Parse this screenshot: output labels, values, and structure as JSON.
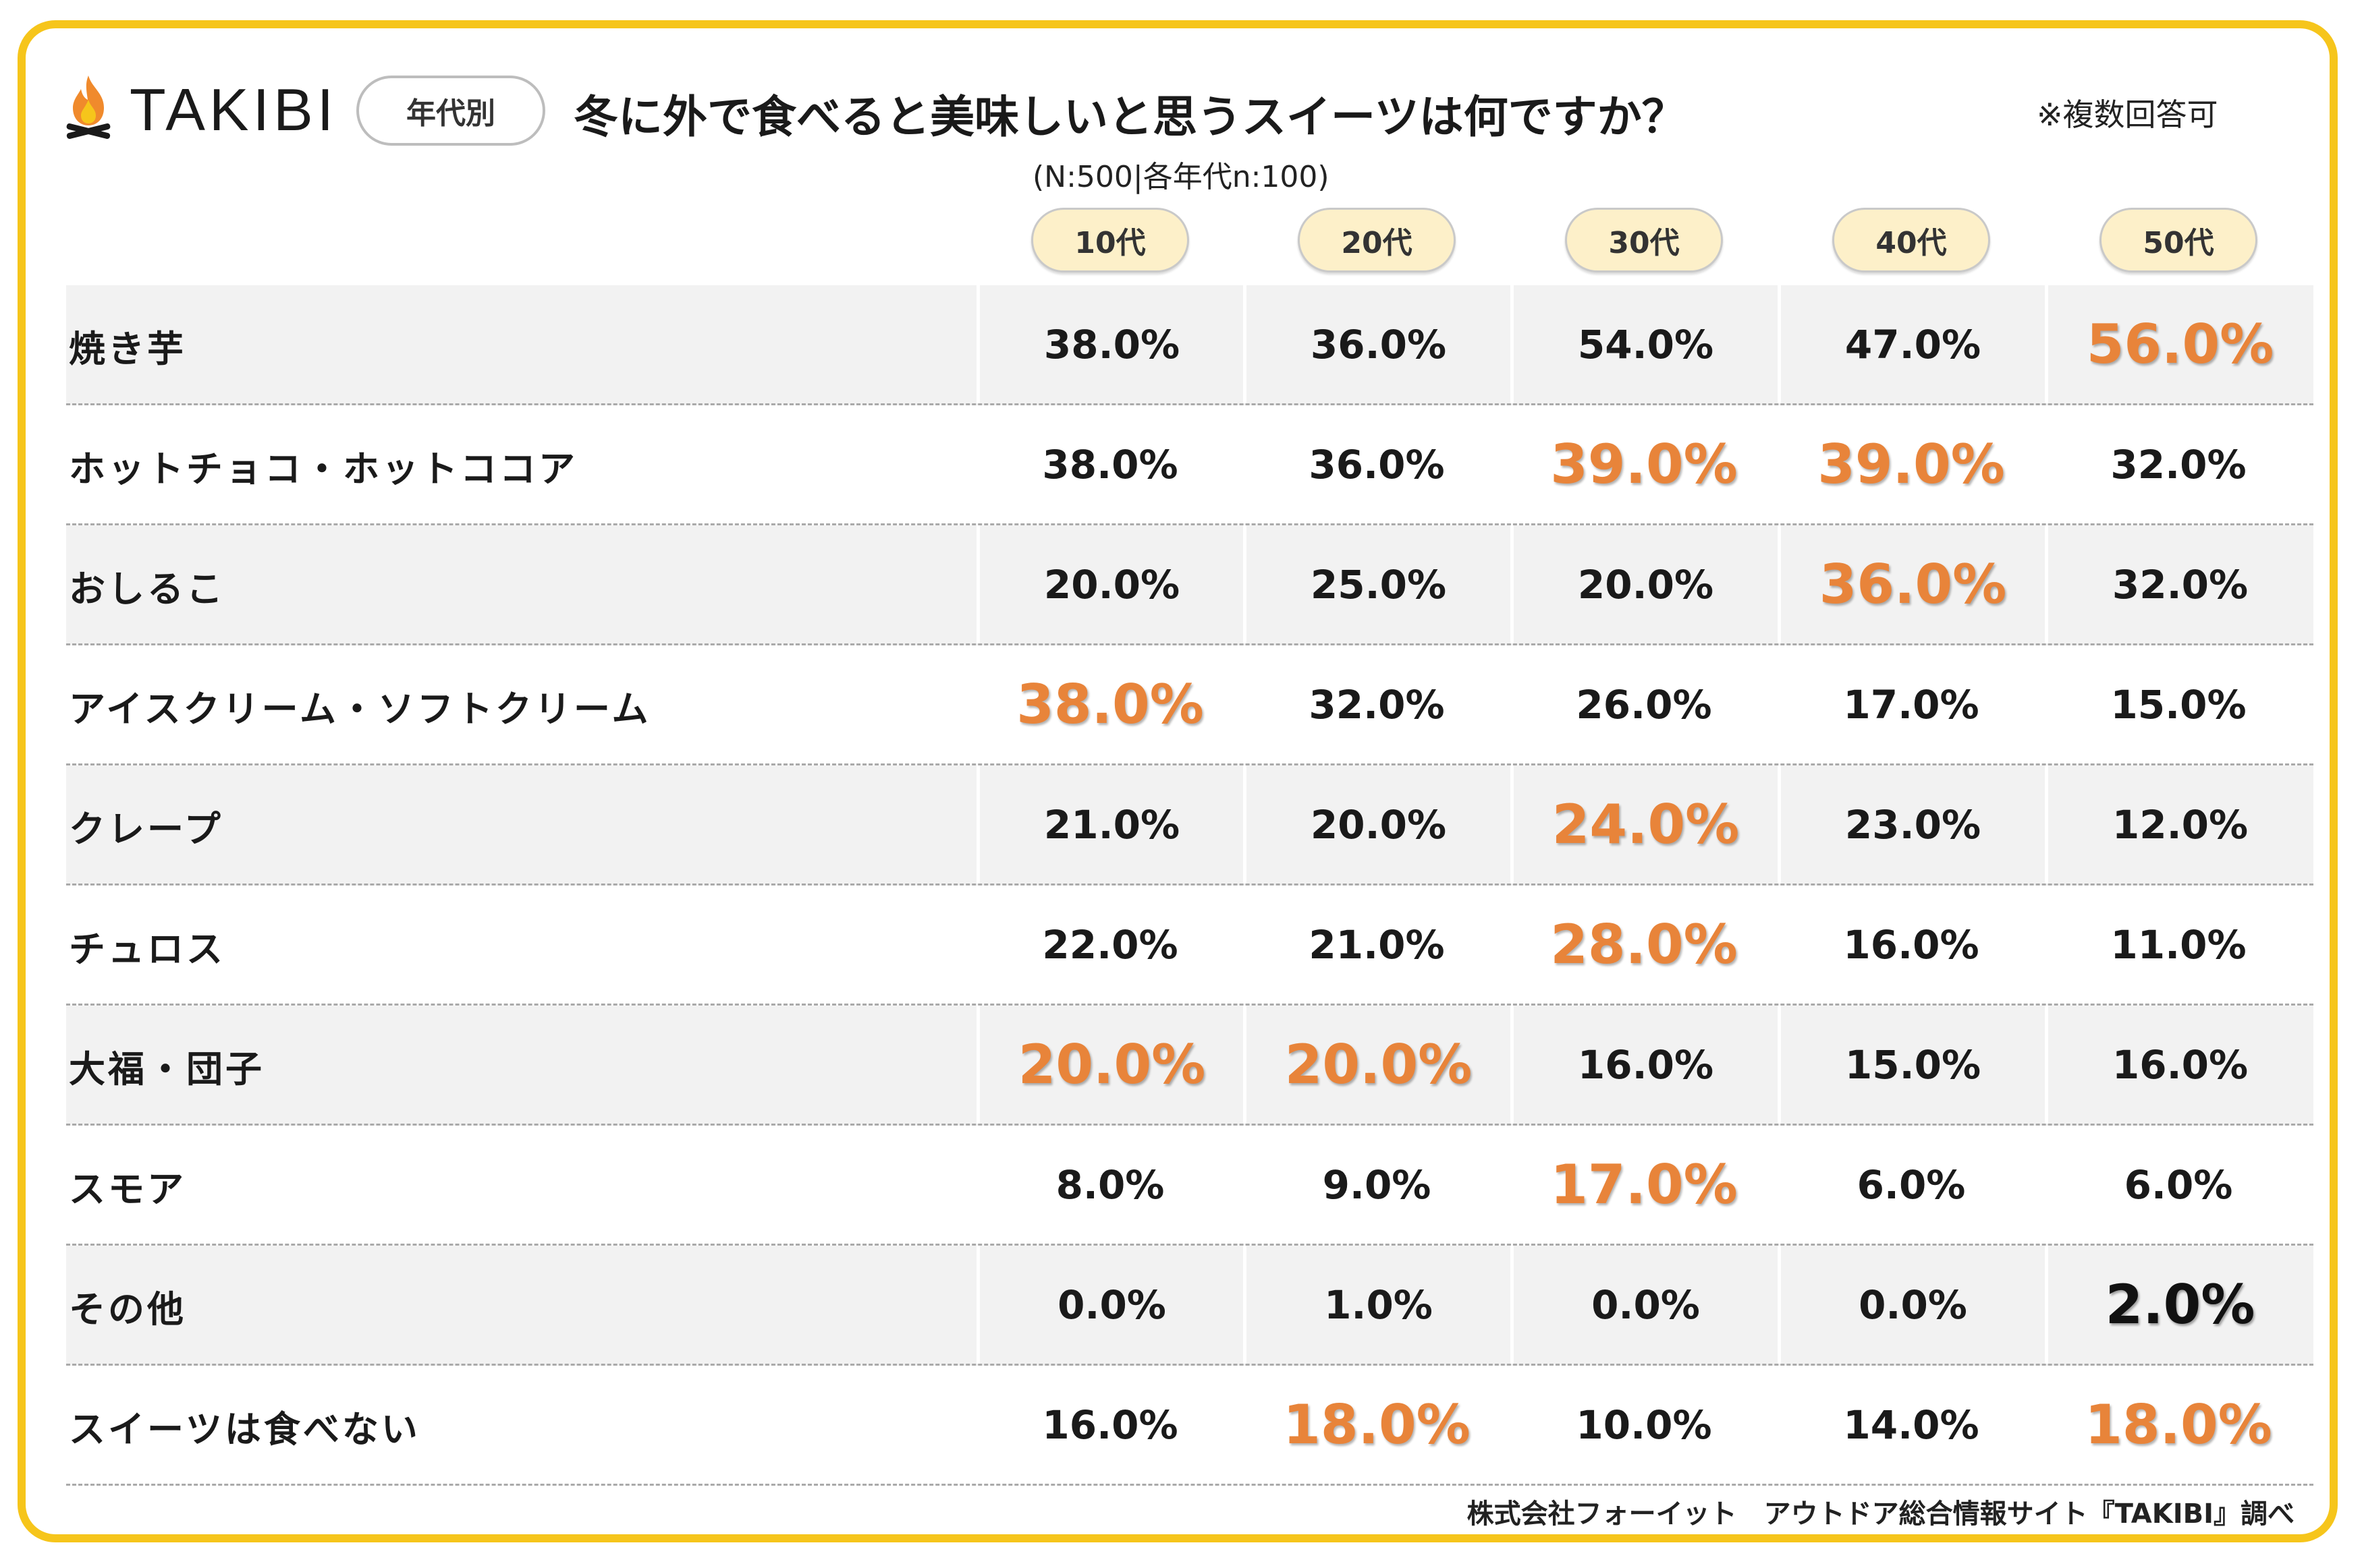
{
  "header": {
    "logo_text": "TAKIBI",
    "tag": "年代別",
    "title": "冬に外で食べると美味しいと思うスイーツは何ですか？",
    "note": "※複数回答可",
    "sample": "(N:500|各年代n:100)"
  },
  "colors": {
    "frame": "#f6c51b",
    "highlight": "#e8843a",
    "header_pill": "#fdf0c9",
    "row_shade": "#f2f2f2"
  },
  "chart_data": {
    "type": "table",
    "columns": [
      "10代",
      "20代",
      "30代",
      "40代",
      "50代"
    ],
    "rows": [
      {
        "label": "焼き芋",
        "values": [
          "38.0%",
          "36.0%",
          "54.0%",
          "47.0%",
          "56.0%"
        ],
        "highlight": [
          false,
          false,
          false,
          false,
          true
        ]
      },
      {
        "label": "ホットチョコ・ホットココア",
        "values": [
          "38.0%",
          "36.0%",
          "39.0%",
          "39.0%",
          "32.0%"
        ],
        "highlight": [
          false,
          false,
          true,
          true,
          false
        ]
      },
      {
        "label": "おしるこ",
        "values": [
          "20.0%",
          "25.0%",
          "20.0%",
          "36.0%",
          "32.0%"
        ],
        "highlight": [
          false,
          false,
          false,
          true,
          false
        ]
      },
      {
        "label": "アイスクリーム・ソフトクリーム",
        "values": [
          "38.0%",
          "32.0%",
          "26.0%",
          "17.0%",
          "15.0%"
        ],
        "highlight": [
          true,
          false,
          false,
          false,
          false
        ]
      },
      {
        "label": "クレープ",
        "values": [
          "21.0%",
          "20.0%",
          "24.0%",
          "23.0%",
          "12.0%"
        ],
        "highlight": [
          false,
          false,
          true,
          false,
          false
        ]
      },
      {
        "label": "チュロス",
        "values": [
          "22.0%",
          "21.0%",
          "28.0%",
          "16.0%",
          "11.0%"
        ],
        "highlight": [
          false,
          false,
          true,
          false,
          false
        ]
      },
      {
        "label": "大福・団子",
        "values": [
          "20.0%",
          "20.0%",
          "16.0%",
          "15.0%",
          "16.0%"
        ],
        "highlight": [
          true,
          true,
          false,
          false,
          false
        ]
      },
      {
        "label": "スモア",
        "values": [
          "8.0%",
          "9.0%",
          "17.0%",
          "6.0%",
          "6.0%"
        ],
        "highlight": [
          false,
          false,
          true,
          false,
          false
        ]
      },
      {
        "label": "その他",
        "values": [
          "0.0%",
          "1.0%",
          "0.0%",
          "0.0%",
          "2.0%"
        ],
        "highlight": [
          false,
          false,
          false,
          false,
          "dark"
        ]
      },
      {
        "label": "スイーツは食べない",
        "values": [
          "16.0%",
          "18.0%",
          "10.0%",
          "14.0%",
          "18.0%"
        ],
        "highlight": [
          false,
          true,
          false,
          false,
          true
        ]
      }
    ]
  },
  "footer": {
    "source": "株式会社フォーイット　アウトドア総合情報サイト『TAKIBI』調べ"
  }
}
